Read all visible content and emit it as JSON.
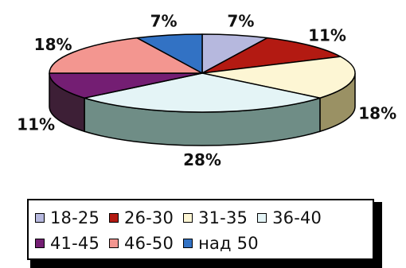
{
  "chart_data": {
    "type": "pie",
    "three_d": true,
    "categories": [
      "18-25",
      "26-30",
      "31-35",
      "36-40",
      "41-45",
      "46-50",
      "над 50"
    ],
    "values": [
      7,
      11,
      18,
      28,
      11,
      18,
      7
    ],
    "value_labels": [
      "7%",
      "11%",
      "18%",
      "28%",
      "11%",
      "18%",
      "7%"
    ],
    "colors": [
      "#b6b8de",
      "#b31a12",
      "#fdf6d4",
      "#e4f4f6",
      "#741e73",
      "#f39690",
      "#3272c4"
    ],
    "side_colors": [
      "#8d8fb3",
      "#851009",
      "#9a9164",
      "#6f8d86",
      "#3d1f36",
      "#a86460",
      "#1d4b8a"
    ],
    "legend_position": "bottom",
    "title": "",
    "xlabel": "",
    "ylabel": ""
  }
}
